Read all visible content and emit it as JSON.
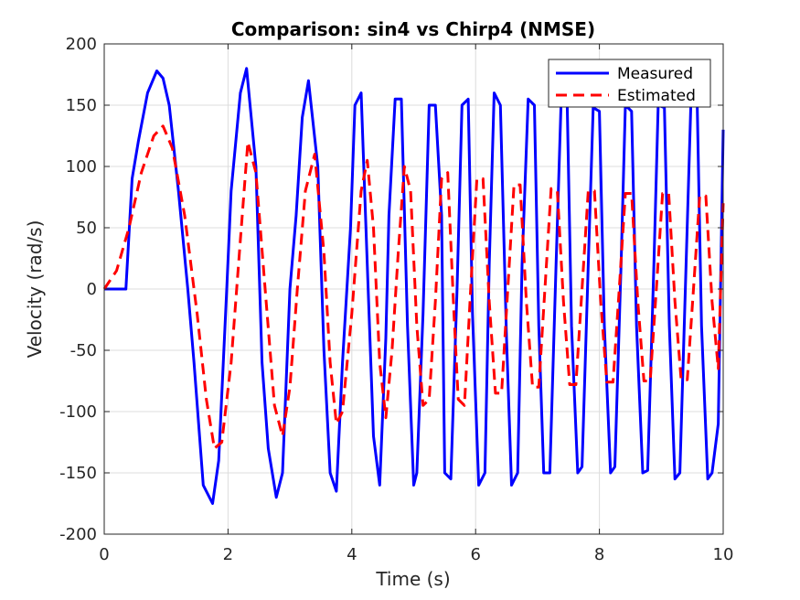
{
  "chart_data": {
    "type": "line",
    "title": "Comparison: sin4 vs Chirp4 (NMSE)",
    "xlabel": "Time (s)",
    "ylabel": "Velocity (rad/s)",
    "xlim": [
      0,
      10
    ],
    "ylim": [
      -200,
      200
    ],
    "xticks": [
      0,
      2,
      4,
      6,
      8,
      10
    ],
    "yticks": [
      -200,
      -150,
      -100,
      -50,
      0,
      50,
      100,
      150,
      200
    ],
    "grid": true,
    "legend_position": "top-right",
    "series": [
      {
        "name": "Measured",
        "color": "#0000ff",
        "style": "solid",
        "x": [
          0,
          0.35,
          0.45,
          0.55,
          0.7,
          0.85,
          0.95,
          1.05,
          1.2,
          1.35,
          1.45,
          1.6,
          1.75,
          1.85,
          1.98,
          2.05,
          2.2,
          2.3,
          2.45,
          2.55,
          2.65,
          2.78,
          2.88,
          3.0,
          3.1,
          3.2,
          3.3,
          3.45,
          3.55,
          3.65,
          3.75,
          3.85,
          3.98,
          4.05,
          4.15,
          4.25,
          4.35,
          4.45,
          4.55,
          4.6,
          4.7,
          4.8,
          4.9,
          5.0,
          5.05,
          5.15,
          5.25,
          5.35,
          5.45,
          5.5,
          5.6,
          5.7,
          5.78,
          5.88,
          5.95,
          6.05,
          6.15,
          6.22,
          6.3,
          6.4,
          6.5,
          6.58,
          6.68,
          6.75,
          6.85,
          6.95,
          7.02,
          7.1,
          7.2,
          7.3,
          7.38,
          7.48,
          7.55,
          7.65,
          7.72,
          7.82,
          7.9,
          8.0,
          8.08,
          8.18,
          8.25,
          8.35,
          8.42,
          8.52,
          8.6,
          8.7,
          8.78,
          8.88,
          8.95,
          9.05,
          9.13,
          9.22,
          9.3,
          9.4,
          9.48,
          9.58,
          9.65,
          9.75,
          9.82,
          9.92,
          10.0
        ],
        "y": [
          0,
          0,
          90,
          120,
          160,
          178,
          172,
          150,
          80,
          0,
          -60,
          -160,
          -175,
          -140,
          0,
          80,
          160,
          180,
          100,
          -60,
          -130,
          -170,
          -150,
          0,
          60,
          140,
          170,
          100,
          -50,
          -150,
          -165,
          -60,
          50,
          150,
          160,
          20,
          -120,
          -160,
          -40,
          60,
          155,
          155,
          -30,
          -160,
          -150,
          -20,
          150,
          150,
          60,
          -150,
          -155,
          0,
          150,
          155,
          -20,
          -160,
          -150,
          20,
          160,
          150,
          -40,
          -160,
          -150,
          20,
          155,
          150,
          -30,
          -150,
          -150,
          20,
          150,
          150,
          -30,
          -150,
          -145,
          20,
          148,
          145,
          -30,
          -150,
          -145,
          20,
          150,
          145,
          -30,
          -150,
          -148,
          20,
          150,
          148,
          -30,
          -155,
          -150,
          20,
          155,
          150,
          -30,
          -155,
          -150,
          -110,
          130
        ]
      },
      {
        "name": "Estimated",
        "color": "#ff0000",
        "style": "dashed",
        "x": [
          0,
          0.2,
          0.4,
          0.6,
          0.8,
          0.95,
          1.1,
          1.3,
          1.5,
          1.65,
          1.78,
          1.9,
          2.05,
          2.2,
          2.32,
          2.45,
          2.6,
          2.75,
          2.88,
          3.0,
          3.12,
          3.25,
          3.4,
          3.55,
          3.65,
          3.75,
          3.85,
          4.0,
          4.15,
          4.25,
          4.35,
          4.45,
          4.55,
          4.65,
          4.75,
          4.85,
          4.95,
          5.05,
          5.15,
          5.25,
          5.35,
          5.45,
          5.55,
          5.65,
          5.72,
          5.82,
          5.92,
          6.02,
          6.12,
          6.22,
          6.32,
          6.42,
          6.52,
          6.62,
          6.72,
          6.82,
          6.92,
          7.02,
          7.12,
          7.22,
          7.32,
          7.42,
          7.52,
          7.62,
          7.72,
          7.82,
          7.92,
          8.02,
          8.12,
          8.22,
          8.32,
          8.42,
          8.52,
          8.62,
          8.72,
          8.82,
          8.92,
          9.02,
          9.12,
          9.22,
          9.32,
          9.42,
          9.52,
          9.62,
          9.72,
          9.82,
          9.92,
          10.0
        ],
        "y": [
          0,
          15,
          50,
          95,
          125,
          133,
          115,
          60,
          -20,
          -90,
          -130,
          -125,
          -60,
          40,
          120,
          95,
          0,
          -95,
          -120,
          -80,
          0,
          80,
          110,
          30,
          -60,
          -110,
          -100,
          -20,
          80,
          105,
          50,
          -60,
          -105,
          -50,
          30,
          100,
          80,
          -30,
          -95,
          -90,
          -10,
          90,
          95,
          -20,
          -90,
          -95,
          0,
          90,
          90,
          -10,
          -85,
          -85,
          0,
          85,
          85,
          -10,
          -80,
          -80,
          0,
          82,
          80,
          -10,
          -78,
          -78,
          0,
          80,
          80,
          -10,
          -76,
          -76,
          0,
          78,
          78,
          -10,
          -75,
          -75,
          0,
          78,
          78,
          -10,
          -74,
          -74,
          0,
          76,
          76,
          -10,
          -65,
          70
        ]
      }
    ]
  }
}
